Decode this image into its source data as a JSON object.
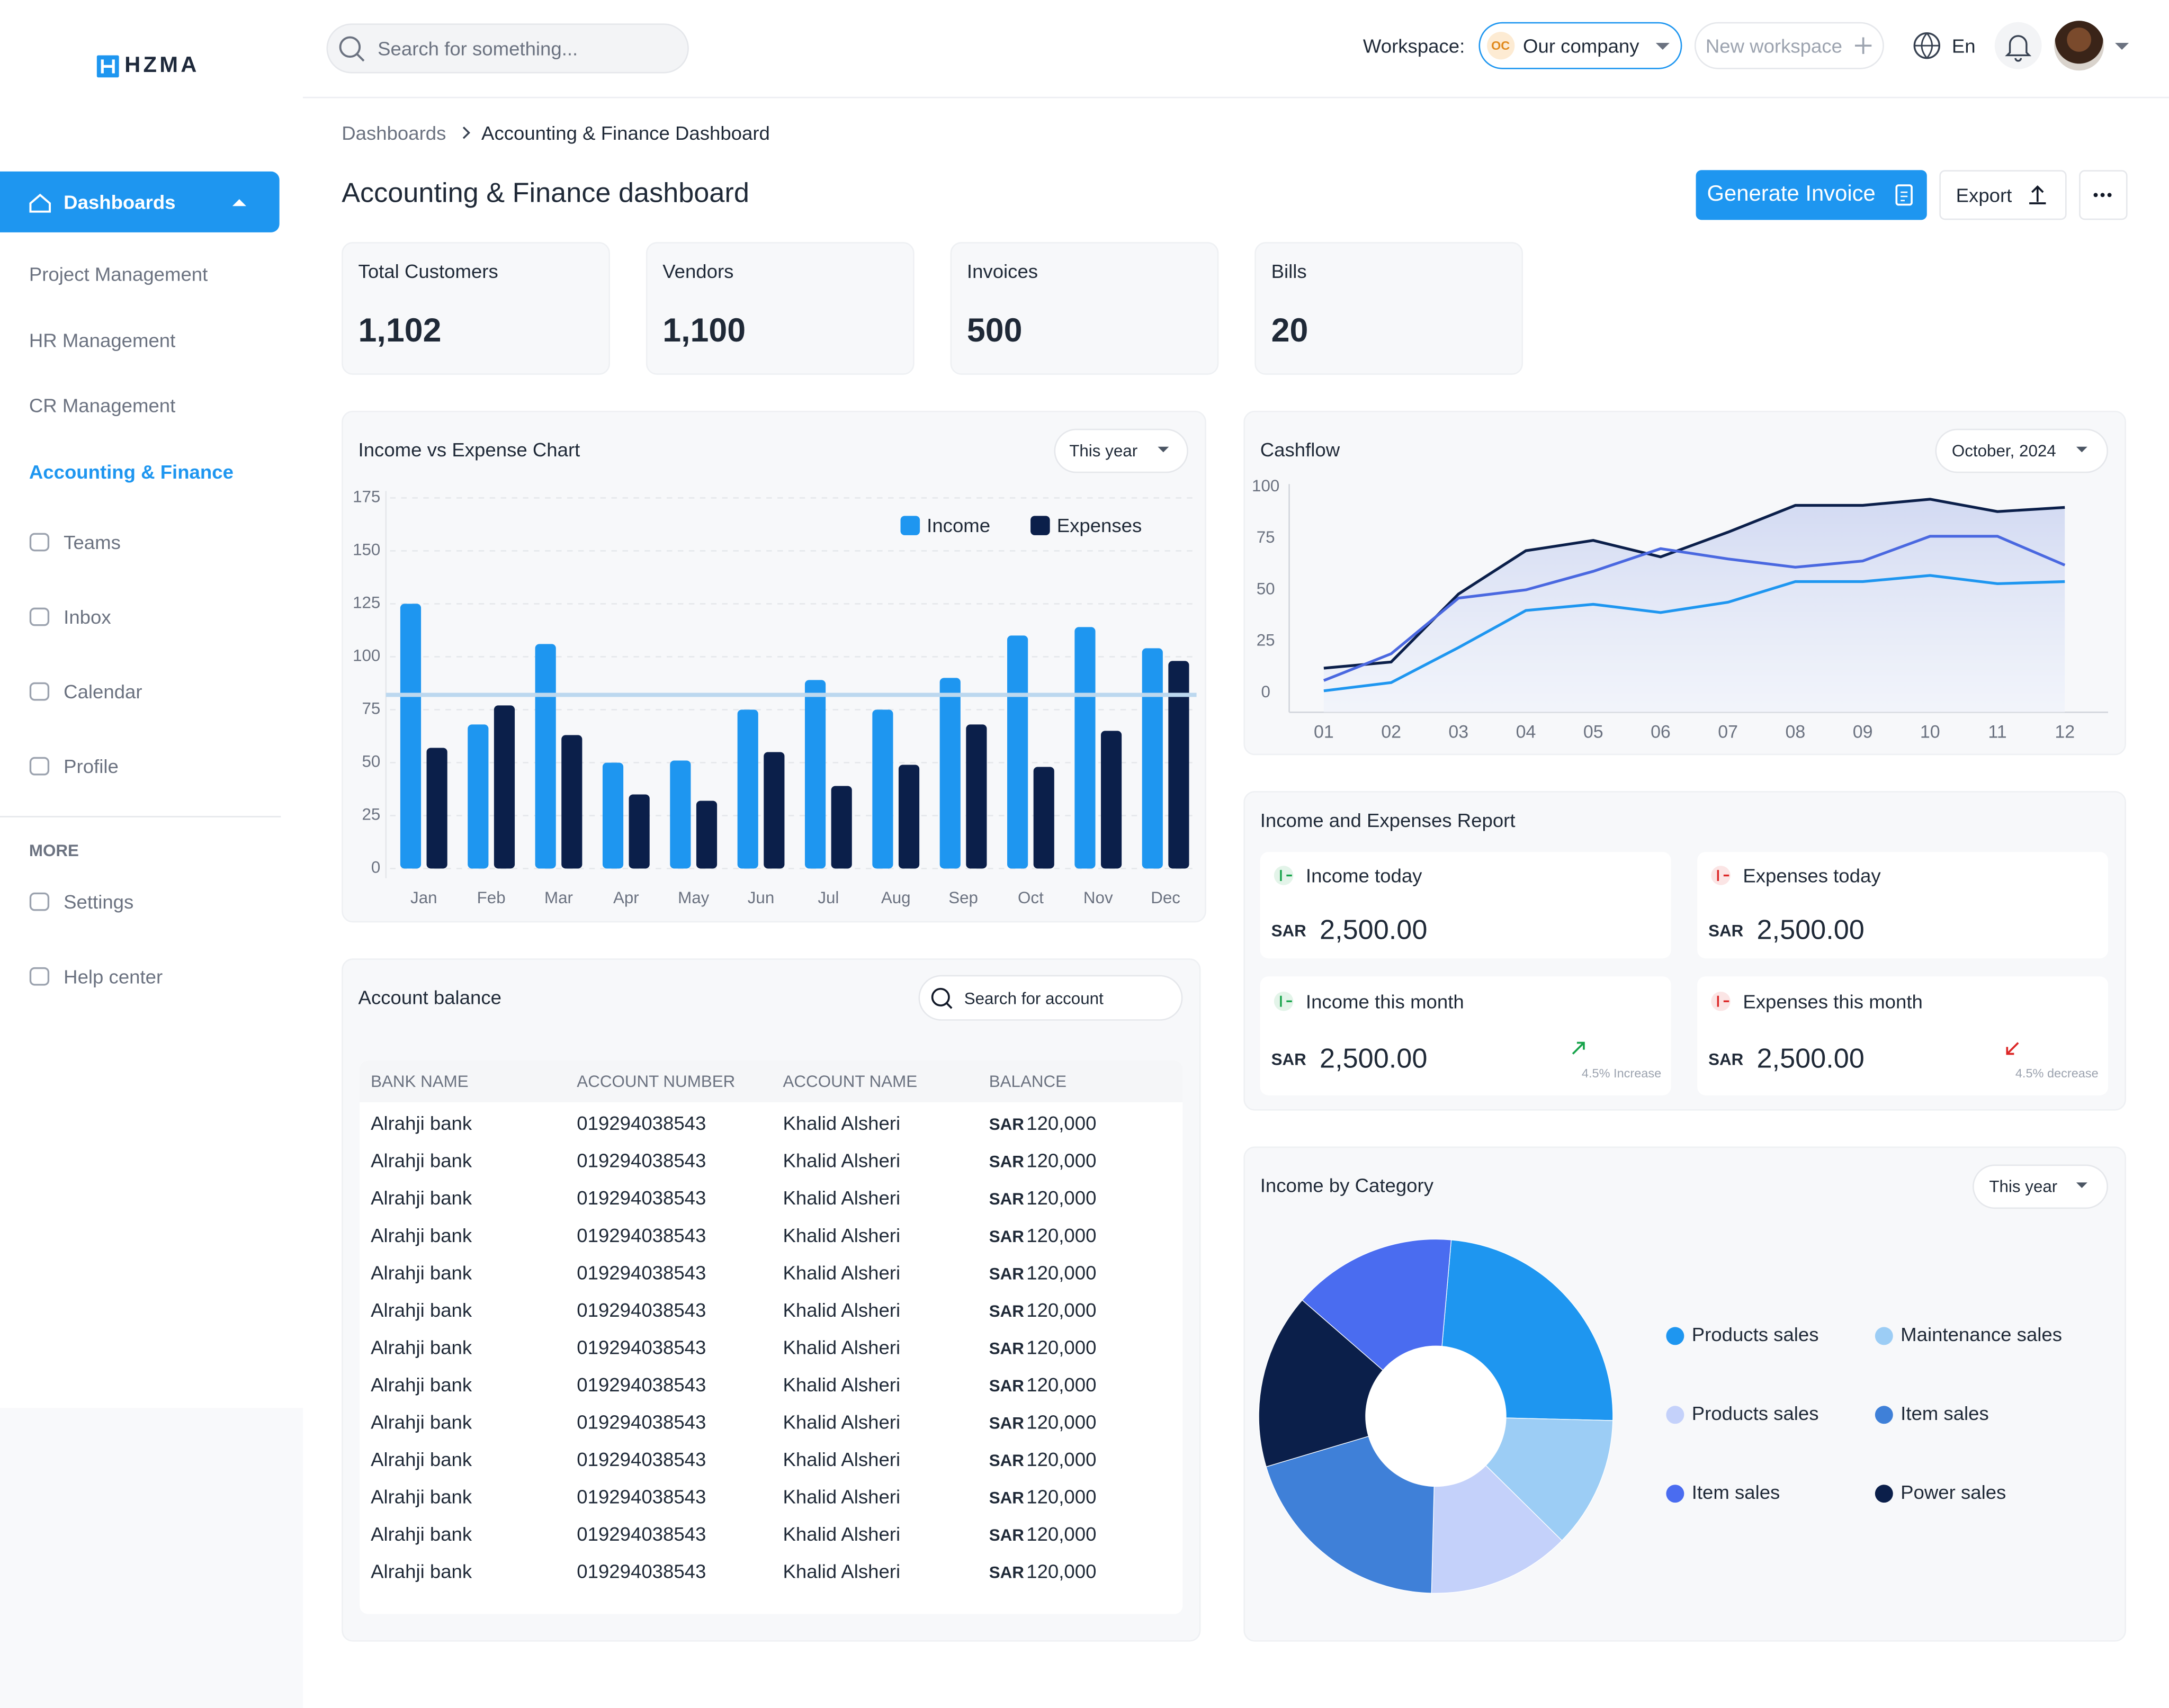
{
  "sidebar": {
    "logo": "HZMA",
    "nav": [
      "Dashboards",
      "Project Management",
      "HR Management",
      "CR Management",
      "Accounting & Finance",
      "Teams",
      "Inbox",
      "Calendar",
      "Profile"
    ],
    "more_label": "MORE",
    "more": [
      "Settings",
      "Help center"
    ]
  },
  "header": {
    "search_placeholder": "Search for something...",
    "workspace_label": "Workspace:",
    "workspace_initials": "OC",
    "workspace": "Our company",
    "new_workspace": "New workspace",
    "language": "En"
  },
  "breadcrumb": [
    "Dashboards",
    "Accounting & Finance Dashboard"
  ],
  "page_title": "Accounting & Finance dashboard",
  "actions": {
    "generate": "Generate Invoice",
    "export": "Export"
  },
  "kpis": [
    {
      "label": "Total Customers",
      "value": "1,102"
    },
    {
      "label": "Vendors",
      "value": "1,100"
    },
    {
      "label": "Invoices",
      "value": "500"
    },
    {
      "label": "Bills",
      "value": "20"
    }
  ],
  "chart_data": [
    {
      "type": "bar",
      "title": "Income vs Expense Chart",
      "filter": "This year",
      "categories": [
        "Jan",
        "Feb",
        "Mar",
        "Apr",
        "May",
        "Jun",
        "Jul",
        "Aug",
        "Sep",
        "Oct",
        "Nov",
        "Dec"
      ],
      "series": [
        {
          "name": "Income",
          "color": "#1e96f0",
          "values": [
            125,
            68,
            106,
            50,
            51,
            75,
            89,
            75,
            90,
            110,
            114,
            104
          ]
        },
        {
          "name": "Expenses",
          "color": "#0b1f4a",
          "values": [
            57,
            77,
            63,
            35,
            32,
            55,
            39,
            49,
            68,
            48,
            65,
            98
          ]
        }
      ],
      "average_line": 82,
      "ylim": [
        0,
        175
      ],
      "yticks": [
        0,
        25,
        50,
        75,
        100,
        125,
        150,
        175
      ],
      "grid": true,
      "legend": "top-right"
    },
    {
      "type": "line",
      "title": "Cashflow",
      "filter": "October, 2024",
      "categories": [
        "01",
        "02",
        "03",
        "04",
        "05",
        "06",
        "07",
        "08",
        "09",
        "10",
        "11",
        "12"
      ],
      "series": [
        {
          "color": "#0b1f4a",
          "area": true,
          "values": [
            12,
            15,
            48,
            69,
            74,
            66,
            78,
            91,
            91,
            94,
            88,
            90
          ]
        },
        {
          "color": "#4a68e0",
          "values": [
            6,
            19,
            46,
            50,
            59,
            70,
            65,
            61,
            64,
            76,
            76,
            62
          ]
        },
        {
          "color": "#1e96f0",
          "values": [
            1,
            5,
            22,
            40,
            43,
            39,
            44,
            54,
            54,
            57,
            53,
            54
          ]
        }
      ],
      "ylim": [
        0,
        100
      ],
      "yticks": [
        0,
        25,
        50,
        75,
        100
      ]
    },
    {
      "type": "pie",
      "title": "Income by Category",
      "filter": "This year",
      "categories": [
        "Products sales",
        "Maintenance sales",
        "Products sales",
        "Item sales",
        "Power sales",
        "Item sales"
      ],
      "colors": [
        "#1e96f0",
        "#9ccdf5",
        "#c4d1fa",
        "#3f80d8",
        "#0b1f4a",
        "#4a6cf0"
      ],
      "values": [
        24,
        12,
        13,
        20,
        16,
        15
      ],
      "donut": true
    }
  ],
  "report": {
    "title": "Income and Expenses Report",
    "items": [
      {
        "label": "Income today",
        "currency": "SAR",
        "amount": "2,500.00"
      },
      {
        "label": "Expenses today",
        "currency": "SAR",
        "amount": "2,500.00"
      },
      {
        "label": "Income this month",
        "currency": "SAR",
        "amount": "2,500.00",
        "change": "4.5% Increase"
      },
      {
        "label": "Expenses this month",
        "currency": "SAR",
        "amount": "2,500.00",
        "change": "4.5% decrease"
      }
    ]
  },
  "account_balance": {
    "title": "Account balance",
    "search_placeholder": "Search for account",
    "columns": [
      "BANK NAME",
      "ACCOUNT NUMBER",
      "ACCOUNT NAME",
      "BALANCE"
    ],
    "rows": [
      [
        "Alrahji bank",
        "019294038543",
        "Khalid Alsheri",
        "SAR",
        "120,000"
      ],
      [
        "Alrahji bank",
        "019294038543",
        "Khalid Alsheri",
        "SAR",
        "120,000"
      ],
      [
        "Alrahji bank",
        "019294038543",
        "Khalid Alsheri",
        "SAR",
        "120,000"
      ],
      [
        "Alrahji bank",
        "019294038543",
        "Khalid Alsheri",
        "SAR",
        "120,000"
      ],
      [
        "Alrahji bank",
        "019294038543",
        "Khalid Alsheri",
        "SAR",
        "120,000"
      ],
      [
        "Alrahji bank",
        "019294038543",
        "Khalid Alsheri",
        "SAR",
        "120,000"
      ],
      [
        "Alrahji bank",
        "019294038543",
        "Khalid Alsheri",
        "SAR",
        "120,000"
      ],
      [
        "Alrahji bank",
        "019294038543",
        "Khalid Alsheri",
        "SAR",
        "120,000"
      ],
      [
        "Alrahji bank",
        "019294038543",
        "Khalid Alsheri",
        "SAR",
        "120,000"
      ],
      [
        "Alrahji bank",
        "019294038543",
        "Khalid Alsheri",
        "SAR",
        "120,000"
      ],
      [
        "Alrahji bank",
        "019294038543",
        "Khalid Alsheri",
        "SAR",
        "120,000"
      ],
      [
        "Alrahji bank",
        "019294038543",
        "Khalid Alsheri",
        "SAR",
        "120,000"
      ],
      [
        "Alrahji bank",
        "019294038543",
        "Khalid Alsheri",
        "SAR",
        "120,000"
      ]
    ]
  }
}
